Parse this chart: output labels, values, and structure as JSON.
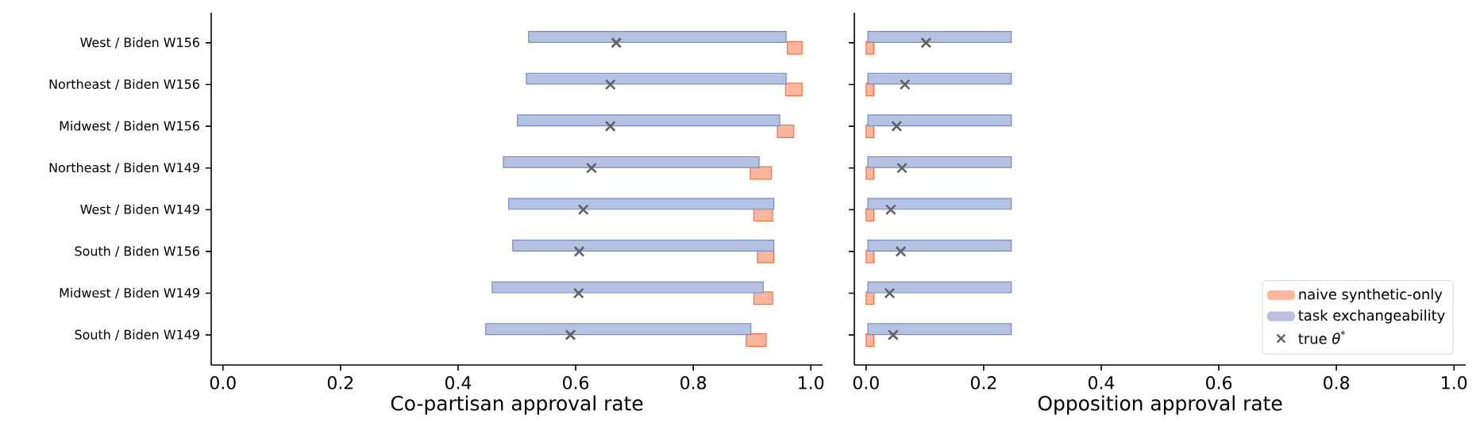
{
  "chart_data": [
    {
      "type": "bar",
      "orientation": "horizontal",
      "xlabel": "Co-partisan approval rate",
      "categories": [
        "West / Biden W156",
        "Northeast / Biden W156",
        "Midwest / Biden W156",
        "Northeast / Biden W149",
        "West / Biden W149",
        "South / Biden W156",
        "Midwest / Biden W149",
        "South / Biden W149"
      ],
      "xlim": [
        -0.02,
        1.02
      ],
      "xticks": [
        {
          "value": 0,
          "label": "0.0"
        },
        {
          "value": 0.2,
          "label": "0.2"
        },
        {
          "value": 0.4,
          "label": "0.4"
        },
        {
          "value": 0.6,
          "label": "0.6"
        },
        {
          "value": 0.8,
          "label": "0.8"
        },
        {
          "value": 1,
          "label": "1.0"
        }
      ],
      "series": [
        {
          "color": "#fbb69c",
          "base": [
            0.96,
            0.957,
            0.943,
            0.897,
            0.903,
            0.909,
            0.903,
            0.89
          ],
          "values": [
            0.025,
            0.028,
            0.028,
            0.036,
            0.032,
            0.028,
            0.032,
            0.034
          ]
        },
        {
          "color": "#b6c2e2",
          "base": [
            0.52,
            0.516,
            0.501,
            0.477,
            0.486,
            0.493,
            0.458,
            0.447
          ],
          "values": [
            0.438,
            0.442,
            0.446,
            0.435,
            0.451,
            0.444,
            0.461,
            0.451
          ]
        },
        {
          "type": "scatter",
          "marker": "cross",
          "color": "#606060",
          "values": [
            0.669,
            0.659,
            0.659,
            0.627,
            0.613,
            0.606,
            0.605,
            0.591
          ]
        }
      ]
    },
    {
      "type": "bar",
      "orientation": "horizontal",
      "xlabel": "Opposition approval rate",
      "categories": [
        null,
        null,
        null,
        null,
        null,
        null,
        null,
        null
      ],
      "tick_labels": "x",
      "xlim": [
        -0.02,
        1.02
      ],
      "xticks": [
        {
          "value": 0,
          "label": "0.0"
        },
        {
          "value": 0.2,
          "label": "0.2"
        },
        {
          "value": 0.4,
          "label": "0.4"
        },
        {
          "value": 0.6,
          "label": "0.6"
        },
        {
          "value": 0.8,
          "label": "0.8"
        },
        {
          "value": 1,
          "label": "1.0"
        }
      ],
      "legend": "bottom right",
      "series": [
        {
          "name": "naive synthetic-only",
          "color": "#fbb69c",
          "base": [
            0,
            0,
            0,
            0,
            0,
            0,
            0,
            0
          ],
          "values": [
            0.013,
            0.013,
            0.013,
            0.013,
            0.013,
            0.013,
            0.013,
            0.013
          ]
        },
        {
          "name": "task exchangeability",
          "color": "#b6c2e2",
          "base": [
            0.003,
            0.003,
            0.003,
            0.003,
            0.003,
            0.003,
            0.003,
            0.003
          ],
          "values": [
            0.244,
            0.244,
            0.244,
            0.244,
            0.244,
            0.244,
            0.244,
            0.244
          ]
        },
        {
          "type": "scatter",
          "name": "true *θ*$^{*}$",
          "marker": "cross",
          "color": "#606060",
          "values": [
            0.102,
            0.066,
            0.052,
            0.061,
            0.042,
            0.059,
            0.04,
            0.046
          ]
        }
      ]
    }
  ]
}
